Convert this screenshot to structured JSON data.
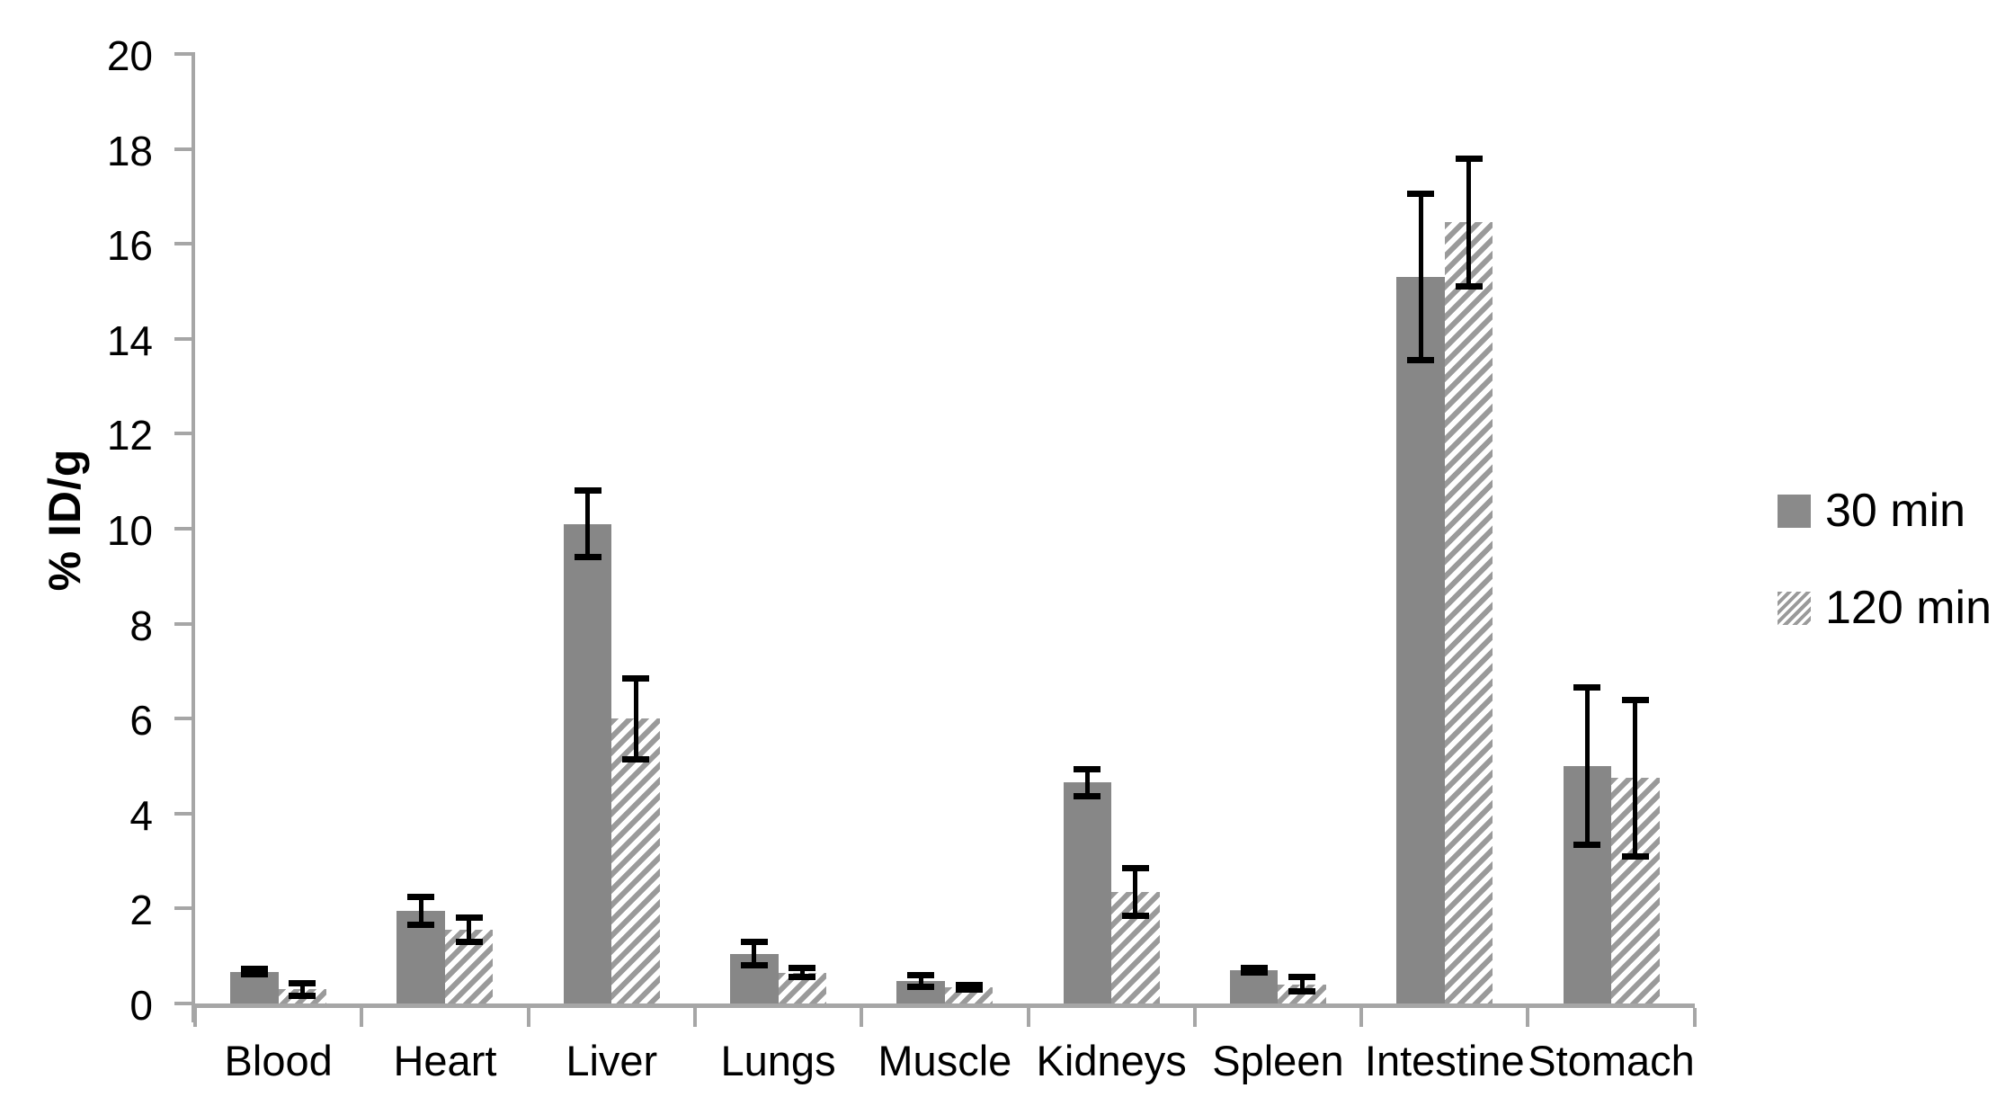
{
  "figure": {
    "background": "#ffffff"
  },
  "chart_data": {
    "type": "bar",
    "title": "",
    "xlabel": "",
    "ylabel": "% ID/g",
    "ylim": [
      0,
      20
    ],
    "ytick_step": 2,
    "yticks": [
      0,
      2,
      4,
      6,
      8,
      10,
      12,
      14,
      16,
      18,
      20
    ],
    "grid": false,
    "legend_position": "right",
    "categories": [
      "Blood",
      "Heart",
      "Liver",
      "Lungs",
      "Muscle",
      "Kidneys",
      "Spleen",
      "Intestine",
      "Stomach"
    ],
    "series": [
      {
        "name": "30 min",
        "style": "solid",
        "values": [
          0.67,
          1.95,
          10.1,
          1.05,
          0.47,
          4.65,
          0.7,
          15.3,
          5.0
        ],
        "errors": [
          0.05,
          0.3,
          0.7,
          0.25,
          0.12,
          0.28,
          0.04,
          1.75,
          1.65
        ]
      },
      {
        "name": "120 min",
        "style": "hatched",
        "values": [
          0.3,
          1.55,
          6.0,
          0.65,
          0.34,
          2.35,
          0.4,
          16.45,
          4.75
        ],
        "errors": [
          0.13,
          0.26,
          0.85,
          0.1,
          0.05,
          0.5,
          0.15,
          1.35,
          1.65
        ]
      }
    ],
    "colors": {
      "solid_bar": "#878787",
      "hatch_stripe": "#9a9a9a",
      "axis": "#a6a6a6",
      "error_bar": "#000000",
      "text": "#000000"
    }
  },
  "legend": {
    "items": [
      {
        "label": "30 min",
        "swatch": "solid"
      },
      {
        "label": "120 min",
        "swatch": "hatched"
      }
    ]
  }
}
